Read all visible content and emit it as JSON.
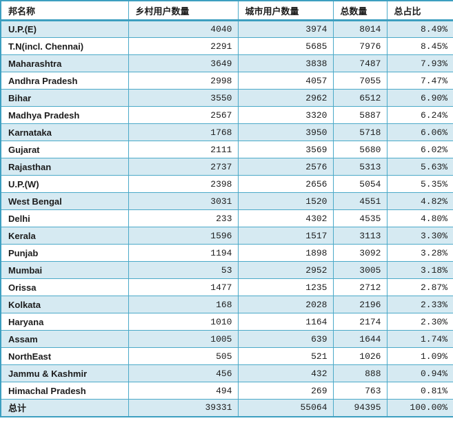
{
  "chart_data": {
    "type": "table",
    "columns": [
      "邦名称",
      "乡村用户数量",
      "城市用户数量",
      "总数量",
      "总占比"
    ],
    "rows": [
      [
        "U.P.(E)",
        4040,
        3974,
        8014,
        "8.49%"
      ],
      [
        "T.N(incl. Chennai)",
        2291,
        5685,
        7976,
        "8.45%"
      ],
      [
        "Maharashtra",
        3649,
        3838,
        7487,
        "7.93%"
      ],
      [
        "Andhra Pradesh",
        2998,
        4057,
        7055,
        "7.47%"
      ],
      [
        "Bihar",
        3550,
        2962,
        6512,
        "6.90%"
      ],
      [
        "Madhya Pradesh",
        2567,
        3320,
        5887,
        "6.24%"
      ],
      [
        "Karnataka",
        1768,
        3950,
        5718,
        "6.06%"
      ],
      [
        "Gujarat",
        2111,
        3569,
        5680,
        "6.02%"
      ],
      [
        "Rajasthan",
        2737,
        2576,
        5313,
        "5.63%"
      ],
      [
        "U.P.(W)",
        2398,
        2656,
        5054,
        "5.35%"
      ],
      [
        "West Bengal",
        3031,
        1520,
        4551,
        "4.82%"
      ],
      [
        "Delhi",
        233,
        4302,
        4535,
        "4.80%"
      ],
      [
        "Kerala",
        1596,
        1517,
        3113,
        "3.30%"
      ],
      [
        "Punjab",
        1194,
        1898,
        3092,
        "3.28%"
      ],
      [
        "Mumbai",
        53,
        2952,
        3005,
        "3.18%"
      ],
      [
        "Orissa",
        1477,
        1235,
        2712,
        "2.87%"
      ],
      [
        "Kolkata",
        168,
        2028,
        2196,
        "2.33%"
      ],
      [
        "Haryana",
        1010,
        1164,
        2174,
        "2.30%"
      ],
      [
        "Assam",
        1005,
        639,
        1644,
        "1.74%"
      ],
      [
        "NorthEast",
        505,
        521,
        1026,
        "1.09%"
      ],
      [
        "Jammu & Kashmir",
        456,
        432,
        888,
        "0.94%"
      ],
      [
        "Himachal Pradesh",
        494,
        269,
        763,
        "0.81%"
      ],
      [
        "总计",
        39331,
        55064,
        94395,
        "100.00%"
      ]
    ],
    "total_row_label": "总计",
    "layout": {
      "grid": "on",
      "striped_rows": true
    }
  },
  "colors": {
    "border": "#4aa9c8",
    "outer_border": "#3d9fc0",
    "header_rule": "#3d9fc0",
    "alt_row_bg": "#d6eaf2",
    "row_bg": "#ffffff",
    "text": "#1c1c1c"
  }
}
